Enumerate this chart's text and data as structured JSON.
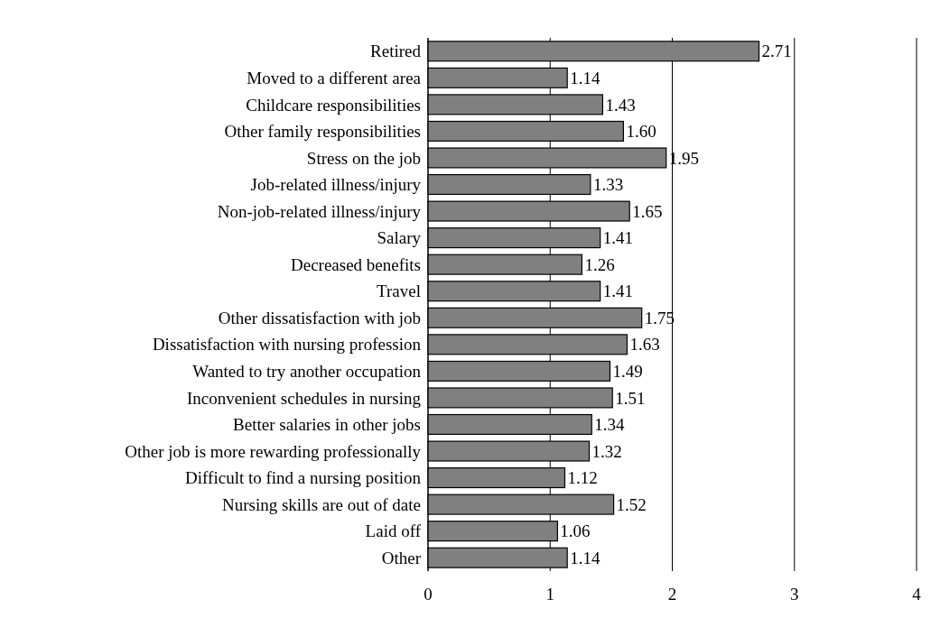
{
  "chart_data": {
    "type": "bar",
    "orientation": "horizontal",
    "categories": [
      "Retired",
      "Moved to a different area",
      "Childcare responsibilities",
      "Other family responsibilities",
      "Stress on the job",
      "Job-related illness/injury",
      "Non-job-related illness/injury",
      "Salary",
      "Decreased benefits",
      "Travel",
      "Other dissatisfaction with job",
      "Dissatisfaction with nursing profession",
      "Wanted to try another occupation",
      "Inconvenient schedules in nursing",
      "Better salaries in other jobs",
      "Other job is more rewarding professionally",
      "Difficult to find a nursing position",
      "Nursing skills are out of date",
      "Laid off",
      "Other"
    ],
    "values": [
      2.71,
      1.14,
      1.43,
      1.6,
      1.95,
      1.33,
      1.65,
      1.41,
      1.26,
      1.41,
      1.75,
      1.63,
      1.49,
      1.51,
      1.34,
      1.32,
      1.12,
      1.52,
      1.06,
      1.14
    ],
    "value_labels": [
      "2.71",
      "1.14",
      "1.43",
      "1.60",
      "1.95",
      "1.33",
      "1.65",
      "1.41",
      "1.26",
      "1.41",
      "1.75",
      "1.63",
      "1.49",
      "1.51",
      "1.34",
      "1.32",
      "1.12",
      "1.52",
      "1.06",
      "1.14"
    ],
    "color": "#808080",
    "xlim": [
      0,
      4
    ],
    "xticks": [
      0,
      1,
      2,
      3,
      4
    ],
    "grid": "x"
  }
}
